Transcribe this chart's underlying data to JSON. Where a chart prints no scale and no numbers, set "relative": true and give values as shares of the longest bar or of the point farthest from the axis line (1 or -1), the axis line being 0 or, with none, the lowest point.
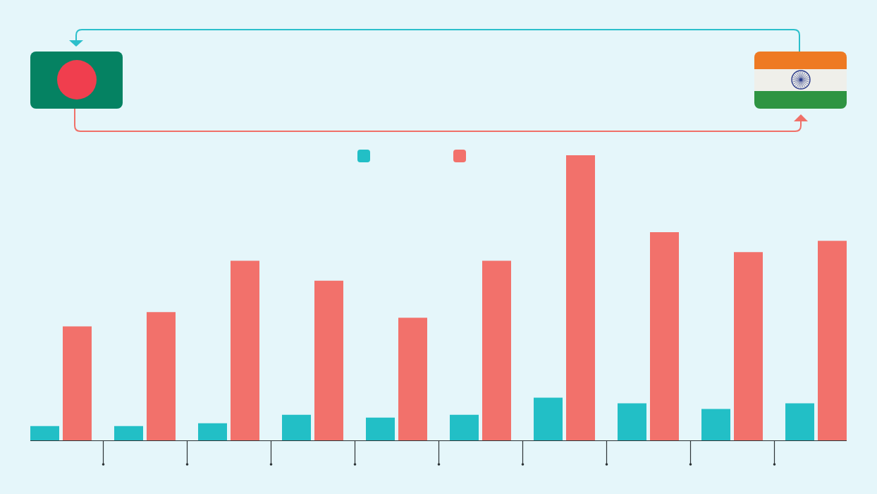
{
  "chart_data": {
    "type": "bar",
    "relative": true,
    "categories": [
      null,
      null,
      null,
      null,
      null,
      null,
      null,
      null,
      null,
      null
    ],
    "series": [
      {
        "color": "#22bfc6",
        "values": [
          0.05,
          0.05,
          0.06,
          0.09,
          0.08,
          0.09,
          0.15,
          0.13,
          0.11,
          0.13
        ]
      },
      {
        "color": "#f2716b",
        "values": [
          0.4,
          0.45,
          0.63,
          0.56,
          0.43,
          0.63,
          1,
          0.73,
          0.66,
          0.7
        ]
      }
    ]
  }
}
